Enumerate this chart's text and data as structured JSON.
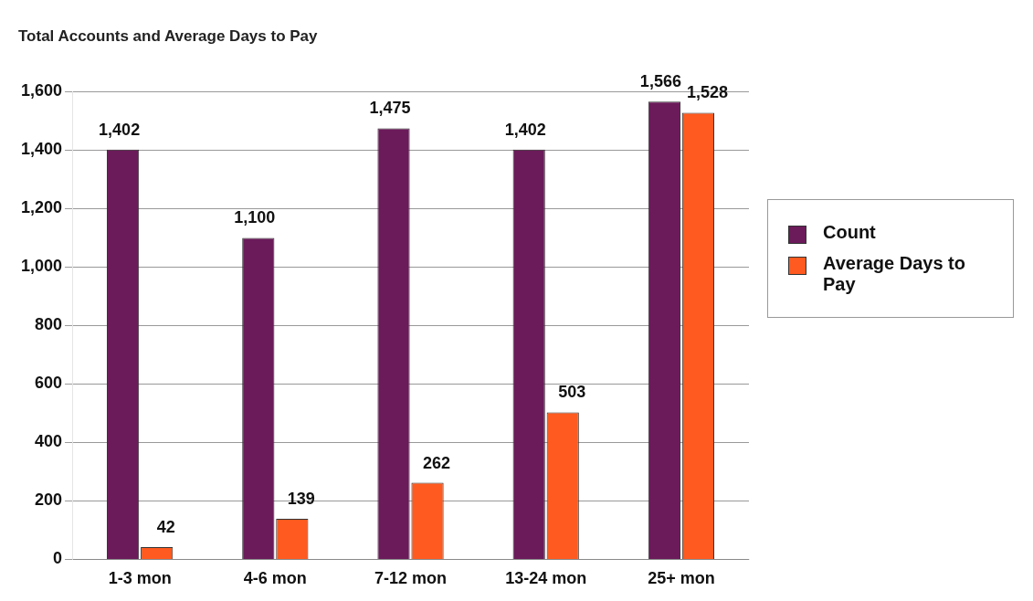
{
  "chart_data": {
    "type": "bar",
    "title": "Total Accounts and Average Days to Pay",
    "categories": [
      "1-3 mon",
      "4-6 mon",
      "7-12 mon",
      "13-24 mon",
      "25+ mon"
    ],
    "series": [
      {
        "name": "Count",
        "color": "#6b1a5a",
        "values": [
          1402,
          1100,
          1475,
          1402,
          1566
        ],
        "value_labels": [
          "1,402",
          "1,100",
          "1,475",
          "1,402",
          "1,566"
        ]
      },
      {
        "name": "Average Days to Pay",
        "color": "#ff5a1f",
        "values": [
          42,
          139,
          262,
          503,
          1528
        ],
        "value_labels": [
          "42",
          "139",
          "262",
          "503",
          "1,528"
        ]
      }
    ],
    "ylim": [
      0,
      1600
    ],
    "yticks": [
      0,
      200,
      400,
      600,
      800,
      {
        "value": 1000,
        "label": "1,000"
      },
      {
        "value": 1200,
        "label": "1,200"
      },
      {
        "value": 1400,
        "label": "1,400"
      },
      {
        "value": 1600,
        "label": "1,600"
      }
    ],
    "grid": "y",
    "legend": "right"
  }
}
